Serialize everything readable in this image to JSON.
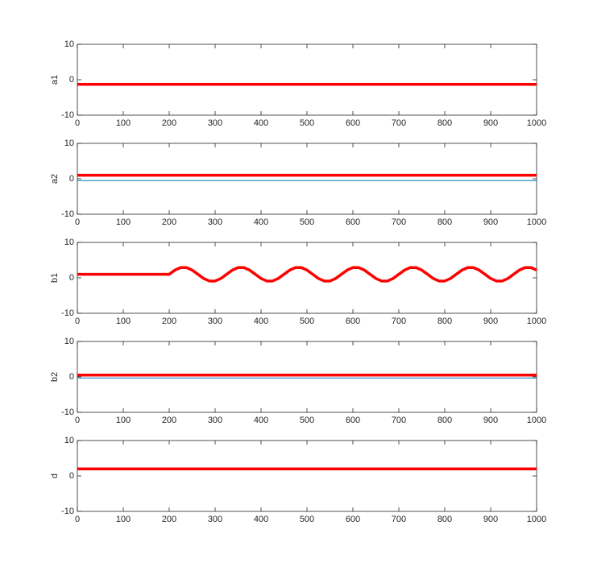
{
  "chart_data": [
    {
      "type": "line",
      "ylabel": "a1",
      "x": [
        0,
        1000
      ],
      "xlim": [
        0,
        1000
      ],
      "xticks": [
        0,
        100,
        200,
        300,
        400,
        500,
        600,
        700,
        800,
        900,
        1000
      ],
      "ylim": [
        -10,
        10
      ],
      "yticks": [
        -10,
        0,
        10
      ],
      "series": [
        {
          "color": "#ff0000",
          "values": [
            -1.3,
            -1.3
          ]
        }
      ]
    },
    {
      "type": "line",
      "ylabel": "a2",
      "x": [
        0,
        1000
      ],
      "xlim": [
        0,
        1000
      ],
      "xticks": [
        0,
        100,
        200,
        300,
        400,
        500,
        600,
        700,
        800,
        900,
        1000
      ],
      "ylim": [
        -10,
        10
      ],
      "yticks": [
        -10,
        0,
        10
      ],
      "series": [
        {
          "color": "#0072bd",
          "values": [
            -0.5,
            -0.5
          ]
        },
        {
          "color": "#ff0000",
          "values": [
            1,
            1
          ]
        }
      ]
    },
    {
      "type": "line",
      "ylabel": "b1",
      "x": [
        0,
        200,
        212.5,
        225,
        237.5,
        250,
        262.5,
        275,
        287.5,
        300,
        312.5,
        325,
        337.5,
        350,
        362.5,
        375,
        387.5,
        400,
        412.5,
        425,
        437.5,
        450,
        462.5,
        475,
        487.5,
        500,
        512.5,
        525,
        537.5,
        550,
        562.5,
        575,
        587.5,
        600,
        612.5,
        625,
        637.5,
        650,
        662.5,
        675,
        687.5,
        700,
        712.5,
        725,
        737.5,
        750,
        762.5,
        775,
        787.5,
        800,
        812.5,
        825,
        837.5,
        850,
        862.5,
        875,
        887.5,
        900,
        912.5,
        925,
        937.5,
        950,
        962.5,
        975,
        987.5,
        1000
      ],
      "xlim": [
        0,
        1000
      ],
      "xticks": [
        0,
        100,
        200,
        300,
        400,
        500,
        600,
        700,
        800,
        900,
        1000
      ],
      "ylim": [
        -10,
        10
      ],
      "yticks": [
        -10,
        0,
        10
      ],
      "series": [
        {
          "color": "#ff0000",
          "values": [
            1,
            1,
            2.18,
            2.9,
            2.9,
            2.18,
            1,
            -0.18,
            -0.9,
            -0.9,
            -0.18,
            1,
            2.18,
            2.9,
            2.9,
            2.18,
            1,
            -0.18,
            -0.9,
            -0.9,
            -0.18,
            1,
            2.18,
            2.9,
            2.9,
            2.18,
            1,
            -0.18,
            -0.9,
            -0.9,
            -0.18,
            1,
            2.18,
            2.9,
            2.9,
            2.18,
            1,
            -0.18,
            -0.9,
            -0.9,
            -0.18,
            1,
            2.18,
            2.9,
            2.9,
            2.18,
            1,
            -0.18,
            -0.9,
            -0.9,
            -0.18,
            1,
            2.18,
            2.9,
            2.9,
            2.18,
            1,
            -0.18,
            -0.9,
            -0.9,
            -0.18,
            1,
            2.18,
            2.9,
            2.9,
            2.18
          ]
        }
      ]
    },
    {
      "type": "line",
      "ylabel": "b2",
      "x": [
        0,
        1000
      ],
      "xlim": [
        0,
        1000
      ],
      "xticks": [
        0,
        100,
        200,
        300,
        400,
        500,
        600,
        700,
        800,
        900,
        1000
      ],
      "ylim": [
        -10,
        10
      ],
      "yticks": [
        -10,
        0,
        10
      ],
      "series": [
        {
          "color": "#0072bd",
          "values": [
            -0.3,
            -0.3
          ]
        },
        {
          "color": "#ff0000",
          "values": [
            0.5,
            0.5
          ]
        }
      ]
    },
    {
      "type": "line",
      "ylabel": "d",
      "x": [
        0,
        1000
      ],
      "xlim": [
        0,
        1000
      ],
      "xticks": [
        0,
        100,
        200,
        300,
        400,
        500,
        600,
        700,
        800,
        900,
        1000
      ],
      "ylim": [
        -10,
        10
      ],
      "yticks": [
        -10,
        0,
        10
      ],
      "series": [
        {
          "color": "#ff0000",
          "values": [
            2,
            2
          ]
        }
      ]
    }
  ]
}
